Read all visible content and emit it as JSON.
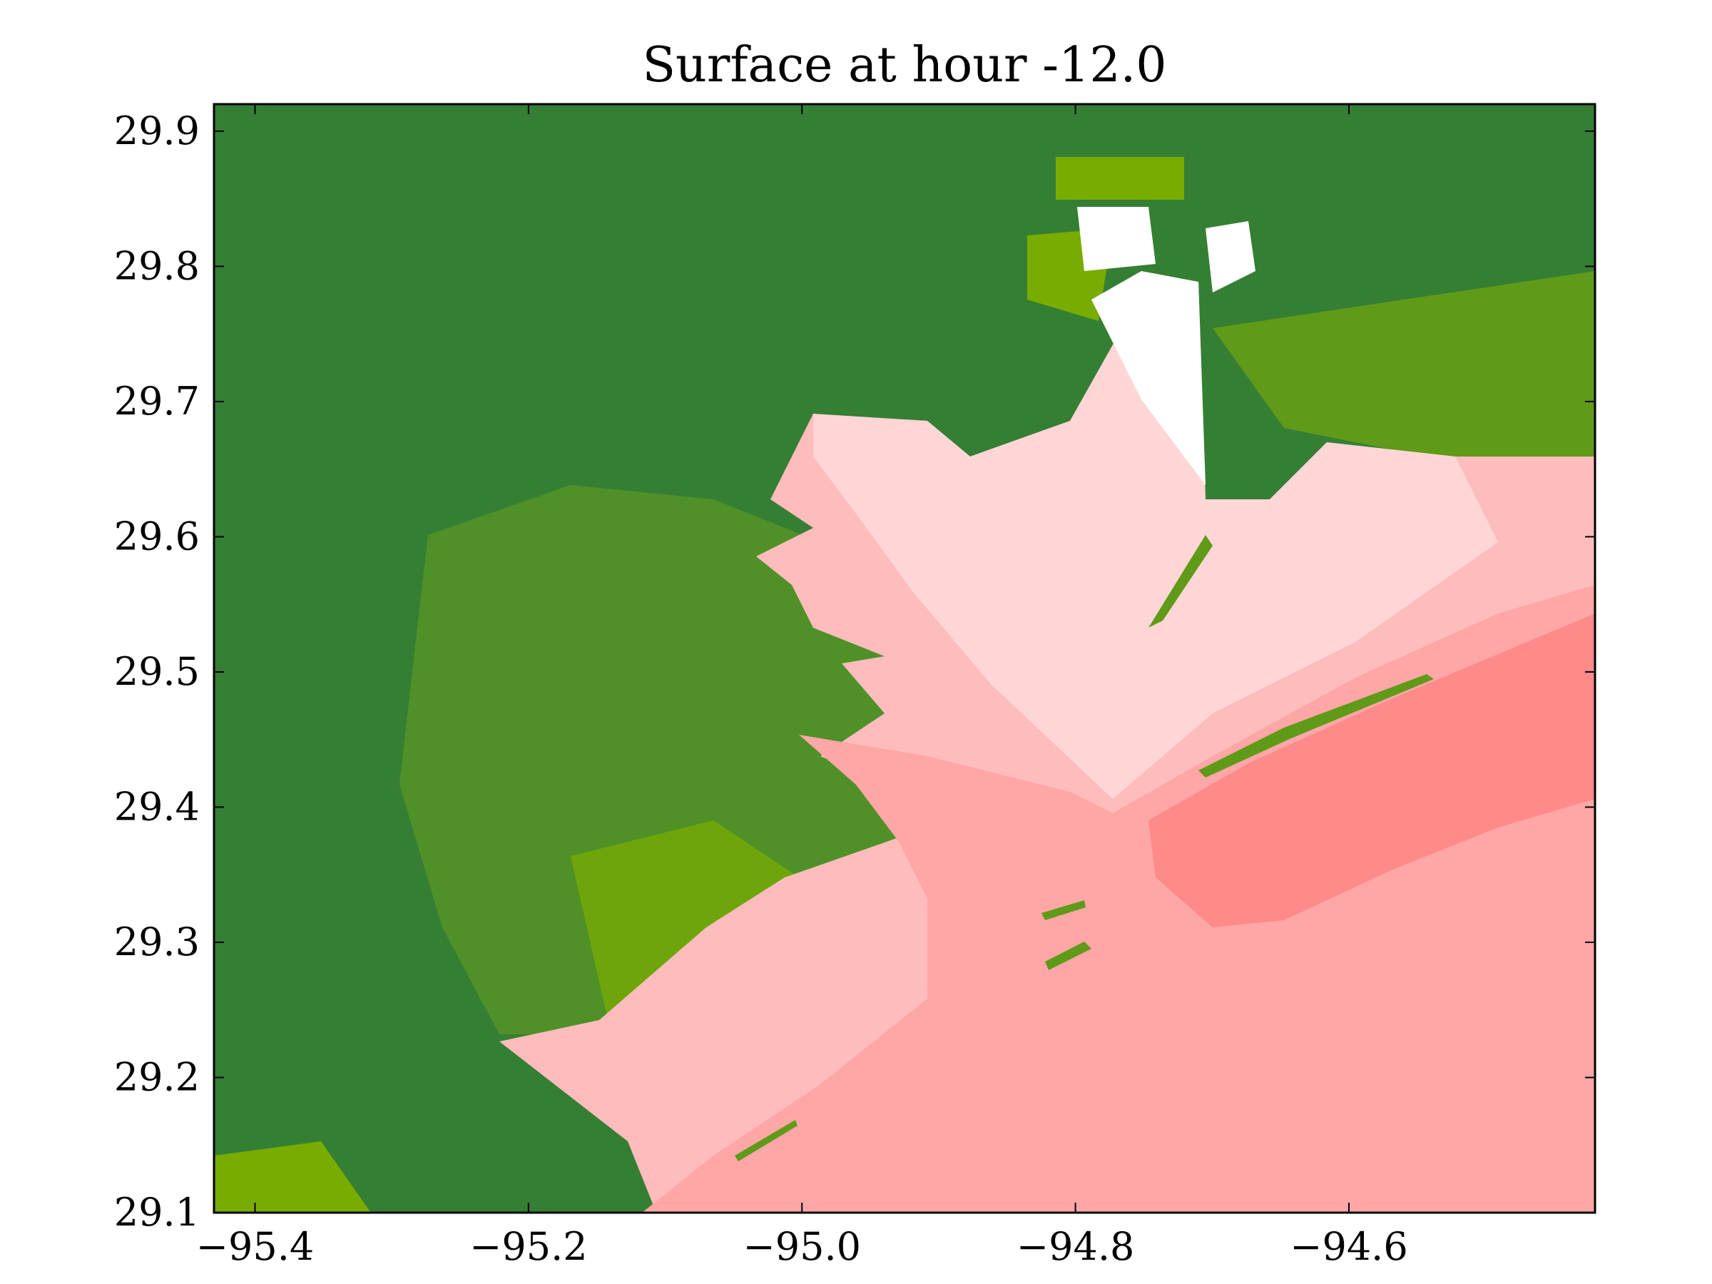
{
  "chart_data": {
    "type": "heatmap",
    "title": "Surface at hour -12.0",
    "xlabel": "",
    "ylabel": "",
    "xlim": [
      -95.43,
      -94.42
    ],
    "ylim": [
      29.1,
      29.92
    ],
    "xticks": [
      -95.4,
      -95.2,
      -95.0,
      -94.8,
      -94.6
    ],
    "xtick_labels": [
      "−95.4",
      "−95.2",
      "−95.0",
      "−94.8",
      "−94.6"
    ],
    "yticks": [
      29.1,
      29.2,
      29.3,
      29.4,
      29.5,
      29.6,
      29.7,
      29.8,
      29.9
    ],
    "ytick_labels": [
      "29.1",
      "29.2",
      "29.3",
      "29.4",
      "29.5",
      "29.6",
      "29.7",
      "29.8",
      "29.9"
    ],
    "grid": false,
    "colors": {
      "land_dark": "#357f34",
      "land_mid": "#4f9128",
      "land_light": "#78ad00",
      "water_palest": "#ffd6d6",
      "water_pale": "#ffbcbc",
      "water_mid": "#ffa6a6",
      "water_deep": "#ff8a8a",
      "dry": "#ffffff"
    }
  }
}
